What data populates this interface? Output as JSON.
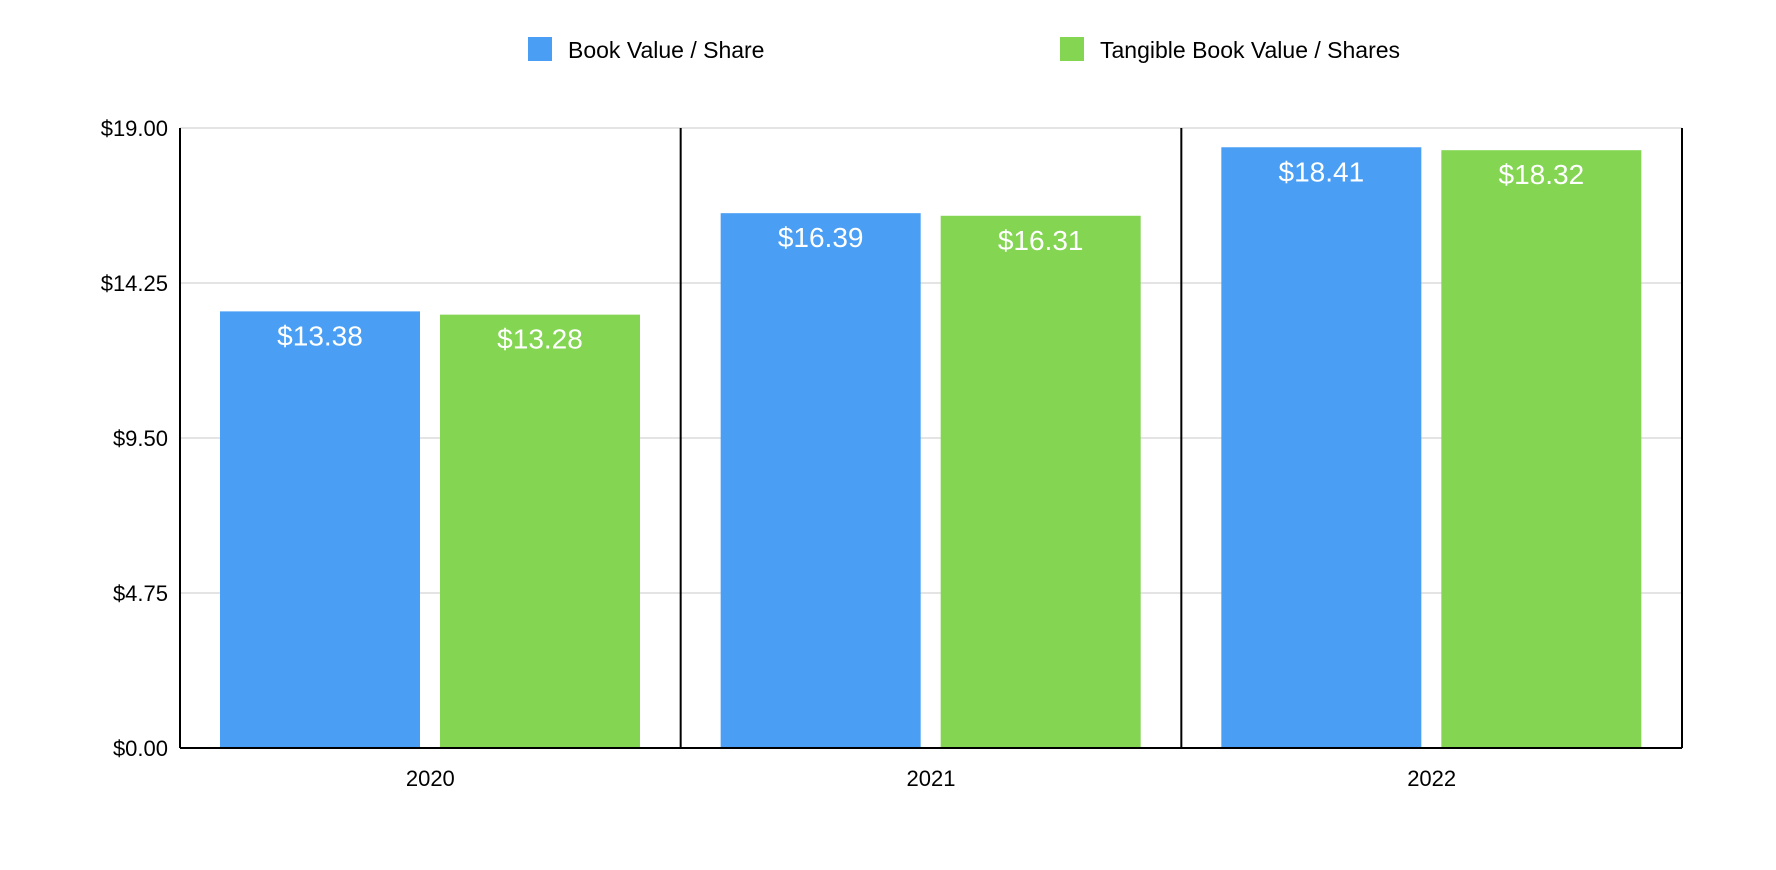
{
  "chart_data": {
    "type": "bar",
    "title": "",
    "xlabel": "",
    "ylabel": "",
    "categories": [
      "2020",
      "2021",
      "2022"
    ],
    "series": [
      {
        "name": "Book Value / Share",
        "color": "#4a9ff5",
        "values": [
          13.38,
          16.39,
          18.41
        ],
        "labels": [
          "$13.38",
          "$16.39",
          "$18.41"
        ]
      },
      {
        "name": "Tangible Book Value / Shares",
        "color": "#83d552",
        "values": [
          13.28,
          16.31,
          18.32
        ],
        "labels": [
          "$13.28",
          "$16.31",
          "$18.32"
        ]
      }
    ],
    "ylim": [
      0,
      19
    ],
    "yticks": [
      0,
      4.75,
      9.5,
      14.25,
      19
    ],
    "ytick_labels": [
      "$0.00",
      "$4.75",
      "$9.50",
      "$14.25",
      "$19.00"
    ],
    "grid": true,
    "legend_position": "top-center"
  }
}
